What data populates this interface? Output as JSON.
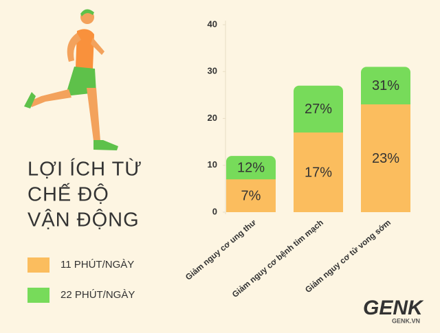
{
  "chart_data": {
    "type": "bar",
    "title": [
      "LỢI ÍCH TỪ",
      "CHẾ ĐỘ",
      "VẬN ĐỘNG"
    ],
    "categories": [
      "Giảm nguy cơ ung thư",
      "Giảm nguy cơ bệnh tim mạch",
      "Giảm nguy cơ tử vong sớm"
    ],
    "series": [
      {
        "name": "22 PHÚT/NGÀY",
        "color": "#77db5a",
        "values": [
          12,
          27,
          31
        ],
        "value_labels": [
          "12%",
          "27%",
          "31%"
        ]
      },
      {
        "name": "11 PHÚT/NGÀY",
        "color": "#fbbd5e",
        "values": [
          7,
          17,
          23
        ],
        "value_labels": [
          "7%",
          "17%",
          "23%"
        ]
      }
    ],
    "ylim": [
      0,
      40
    ],
    "yticks": [
      0,
      10,
      20,
      30,
      40
    ],
    "grid": false,
    "watermark": [
      "GENK",
      "GENK.VN"
    ]
  }
}
